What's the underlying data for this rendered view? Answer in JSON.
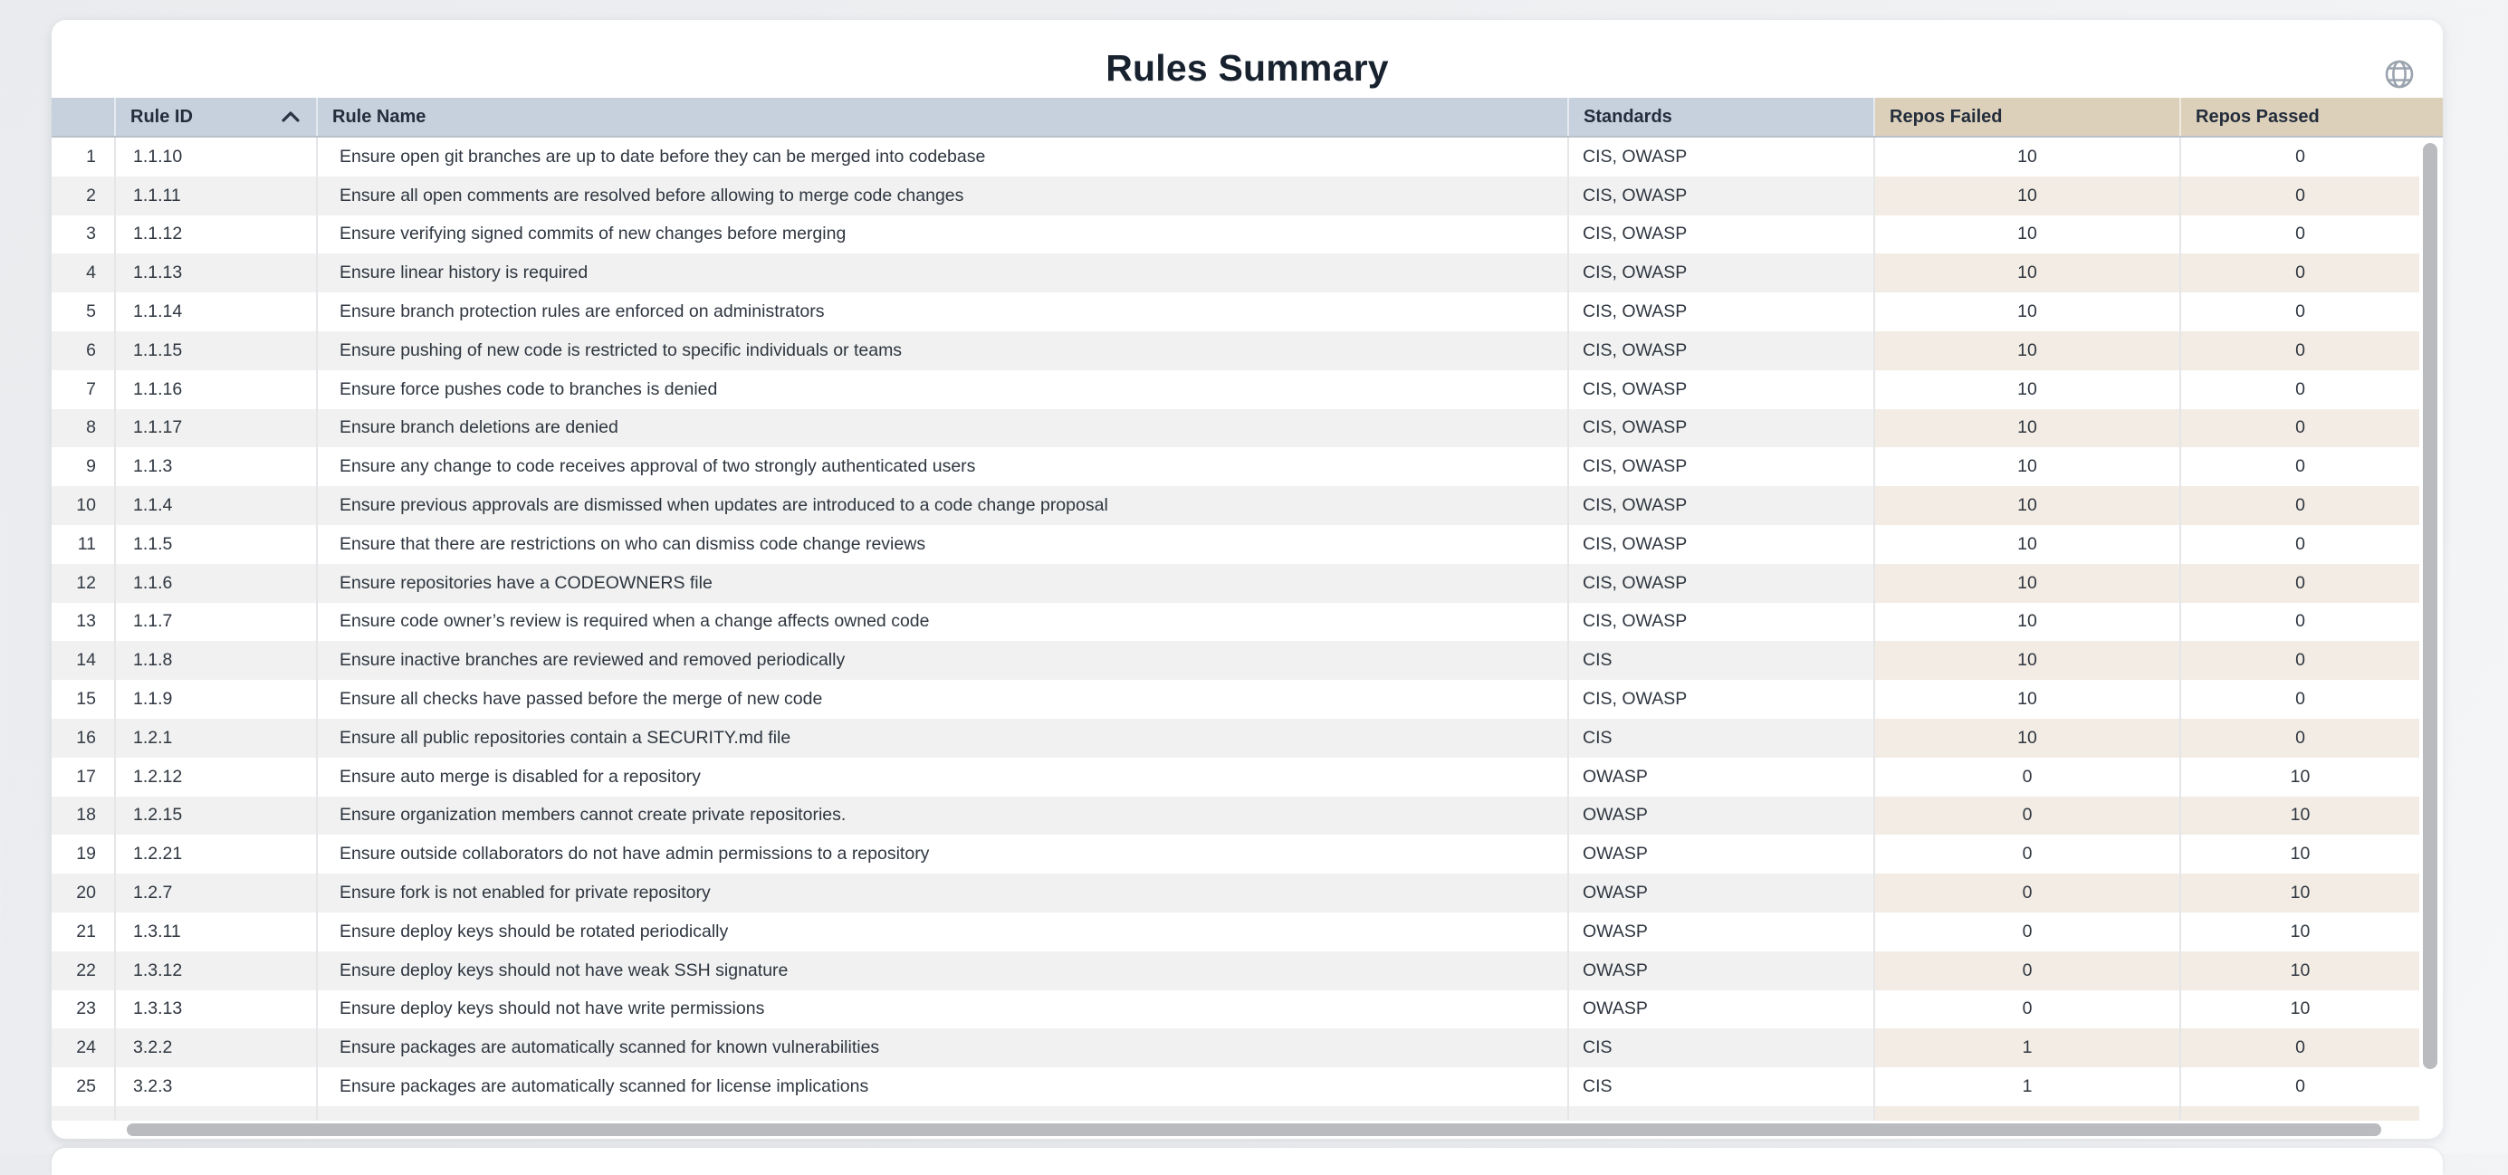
{
  "page_title": "Rules Summary",
  "colors": {
    "header_blue": "#c7d1de",
    "header_tan": "#ddd0bb",
    "zebra_gray": "#f0f1f0",
    "zebra_tan": "#f3ece4",
    "scrollbar_thumb": "#b9bbbe",
    "title_text": "#18222f",
    "body_text": "#2f3640"
  },
  "sort": {
    "column": "Rule ID",
    "direction": "ascending"
  },
  "table": {
    "columns": [
      {
        "key": "index",
        "label": ""
      },
      {
        "key": "rule_id",
        "label": "Rule ID"
      },
      {
        "key": "rule_name",
        "label": "Rule Name"
      },
      {
        "key": "standards",
        "label": "Standards"
      },
      {
        "key": "repos_failed",
        "label": "Repos Failed"
      },
      {
        "key": "repos_passed",
        "label": "Repos Passed"
      }
    ],
    "rows": [
      {
        "index": 1,
        "rule_id": "1.1.10",
        "rule_name": "Ensure open git branches are up to date before they can be merged into codebase",
        "standards": "CIS, OWASP",
        "repos_failed": 10,
        "repos_passed": 0
      },
      {
        "index": 2,
        "rule_id": "1.1.11",
        "rule_name": "Ensure all open comments are resolved before allowing to merge code changes",
        "standards": "CIS, OWASP",
        "repos_failed": 10,
        "repos_passed": 0
      },
      {
        "index": 3,
        "rule_id": "1.1.12",
        "rule_name": "Ensure verifying signed commits of new changes before merging",
        "standards": "CIS, OWASP",
        "repos_failed": 10,
        "repos_passed": 0
      },
      {
        "index": 4,
        "rule_id": "1.1.13",
        "rule_name": "Ensure linear history is required",
        "standards": "CIS, OWASP",
        "repos_failed": 10,
        "repos_passed": 0
      },
      {
        "index": 5,
        "rule_id": "1.1.14",
        "rule_name": "Ensure branch protection rules are enforced on administrators",
        "standards": "CIS, OWASP",
        "repos_failed": 10,
        "repos_passed": 0
      },
      {
        "index": 6,
        "rule_id": "1.1.15",
        "rule_name": "Ensure pushing of new code is restricted to specific individuals or teams",
        "standards": "CIS, OWASP",
        "repos_failed": 10,
        "repos_passed": 0
      },
      {
        "index": 7,
        "rule_id": "1.1.16",
        "rule_name": "Ensure force pushes code to branches is denied",
        "standards": "CIS, OWASP",
        "repos_failed": 10,
        "repos_passed": 0
      },
      {
        "index": 8,
        "rule_id": "1.1.17",
        "rule_name": "Ensure branch deletions are denied",
        "standards": "CIS, OWASP",
        "repos_failed": 10,
        "repos_passed": 0
      },
      {
        "index": 9,
        "rule_id": "1.1.3",
        "rule_name": "Ensure any change to code receives approval of two strongly authenticated users",
        "standards": "CIS, OWASP",
        "repos_failed": 10,
        "repos_passed": 0
      },
      {
        "index": 10,
        "rule_id": "1.1.4",
        "rule_name": "Ensure previous approvals are dismissed when updates are introduced to a code change proposal",
        "standards": "CIS, OWASP",
        "repos_failed": 10,
        "repos_passed": 0
      },
      {
        "index": 11,
        "rule_id": "1.1.5",
        "rule_name": "Ensure that there are restrictions on who can dismiss code change reviews",
        "standards": "CIS, OWASP",
        "repos_failed": 10,
        "repos_passed": 0
      },
      {
        "index": 12,
        "rule_id": "1.1.6",
        "rule_name": "Ensure repositories have a CODEOWNERS file",
        "standards": "CIS, OWASP",
        "repos_failed": 10,
        "repos_passed": 0
      },
      {
        "index": 13,
        "rule_id": "1.1.7",
        "rule_name": "Ensure code owner’s review is required when a change affects owned code",
        "standards": "CIS, OWASP",
        "repos_failed": 10,
        "repos_passed": 0
      },
      {
        "index": 14,
        "rule_id": "1.1.8",
        "rule_name": "Ensure inactive branches are reviewed and removed periodically",
        "standards": "CIS",
        "repos_failed": 10,
        "repos_passed": 0
      },
      {
        "index": 15,
        "rule_id": "1.1.9",
        "rule_name": "Ensure all checks have passed before the merge of new code",
        "standards": "CIS, OWASP",
        "repos_failed": 10,
        "repos_passed": 0
      },
      {
        "index": 16,
        "rule_id": "1.2.1",
        "rule_name": "Ensure all public repositories contain a SECURITY.md file",
        "standards": "CIS",
        "repos_failed": 10,
        "repos_passed": 0
      },
      {
        "index": 17,
        "rule_id": "1.2.12",
        "rule_name": "Ensure auto merge is disabled for a repository",
        "standards": "OWASP",
        "repos_failed": 0,
        "repos_passed": 10
      },
      {
        "index": 18,
        "rule_id": "1.2.15",
        "rule_name": "Ensure organization members cannot create private repositories.",
        "standards": "OWASP",
        "repos_failed": 0,
        "repos_passed": 10
      },
      {
        "index": 19,
        "rule_id": "1.2.21",
        "rule_name": "Ensure outside collaborators do not have admin permissions to a repository",
        "standards": "OWASP",
        "repos_failed": 0,
        "repos_passed": 10
      },
      {
        "index": 20,
        "rule_id": "1.2.7",
        "rule_name": "Ensure fork is not enabled for private repository",
        "standards": "OWASP",
        "repos_failed": 0,
        "repos_passed": 10
      },
      {
        "index": 21,
        "rule_id": "1.3.11",
        "rule_name": "Ensure deploy keys should be rotated periodically",
        "standards": "OWASP",
        "repos_failed": 0,
        "repos_passed": 10
      },
      {
        "index": 22,
        "rule_id": "1.3.12",
        "rule_name": "Ensure deploy keys should not have weak SSH signature",
        "standards": "OWASP",
        "repos_failed": 0,
        "repos_passed": 10
      },
      {
        "index": 23,
        "rule_id": "1.3.13",
        "rule_name": "Ensure deploy keys should not have write permissions",
        "standards": "OWASP",
        "repos_failed": 0,
        "repos_passed": 10
      },
      {
        "index": 24,
        "rule_id": "3.2.2",
        "rule_name": "Ensure packages are automatically scanned for known vulnerabilities",
        "standards": "CIS",
        "repos_failed": 1,
        "repos_passed": 0
      },
      {
        "index": 25,
        "rule_id": "3.2.3",
        "rule_name": "Ensure packages are automatically scanned for license implications",
        "standards": "CIS",
        "repos_failed": 1,
        "repos_passed": 0
      }
    ]
  }
}
